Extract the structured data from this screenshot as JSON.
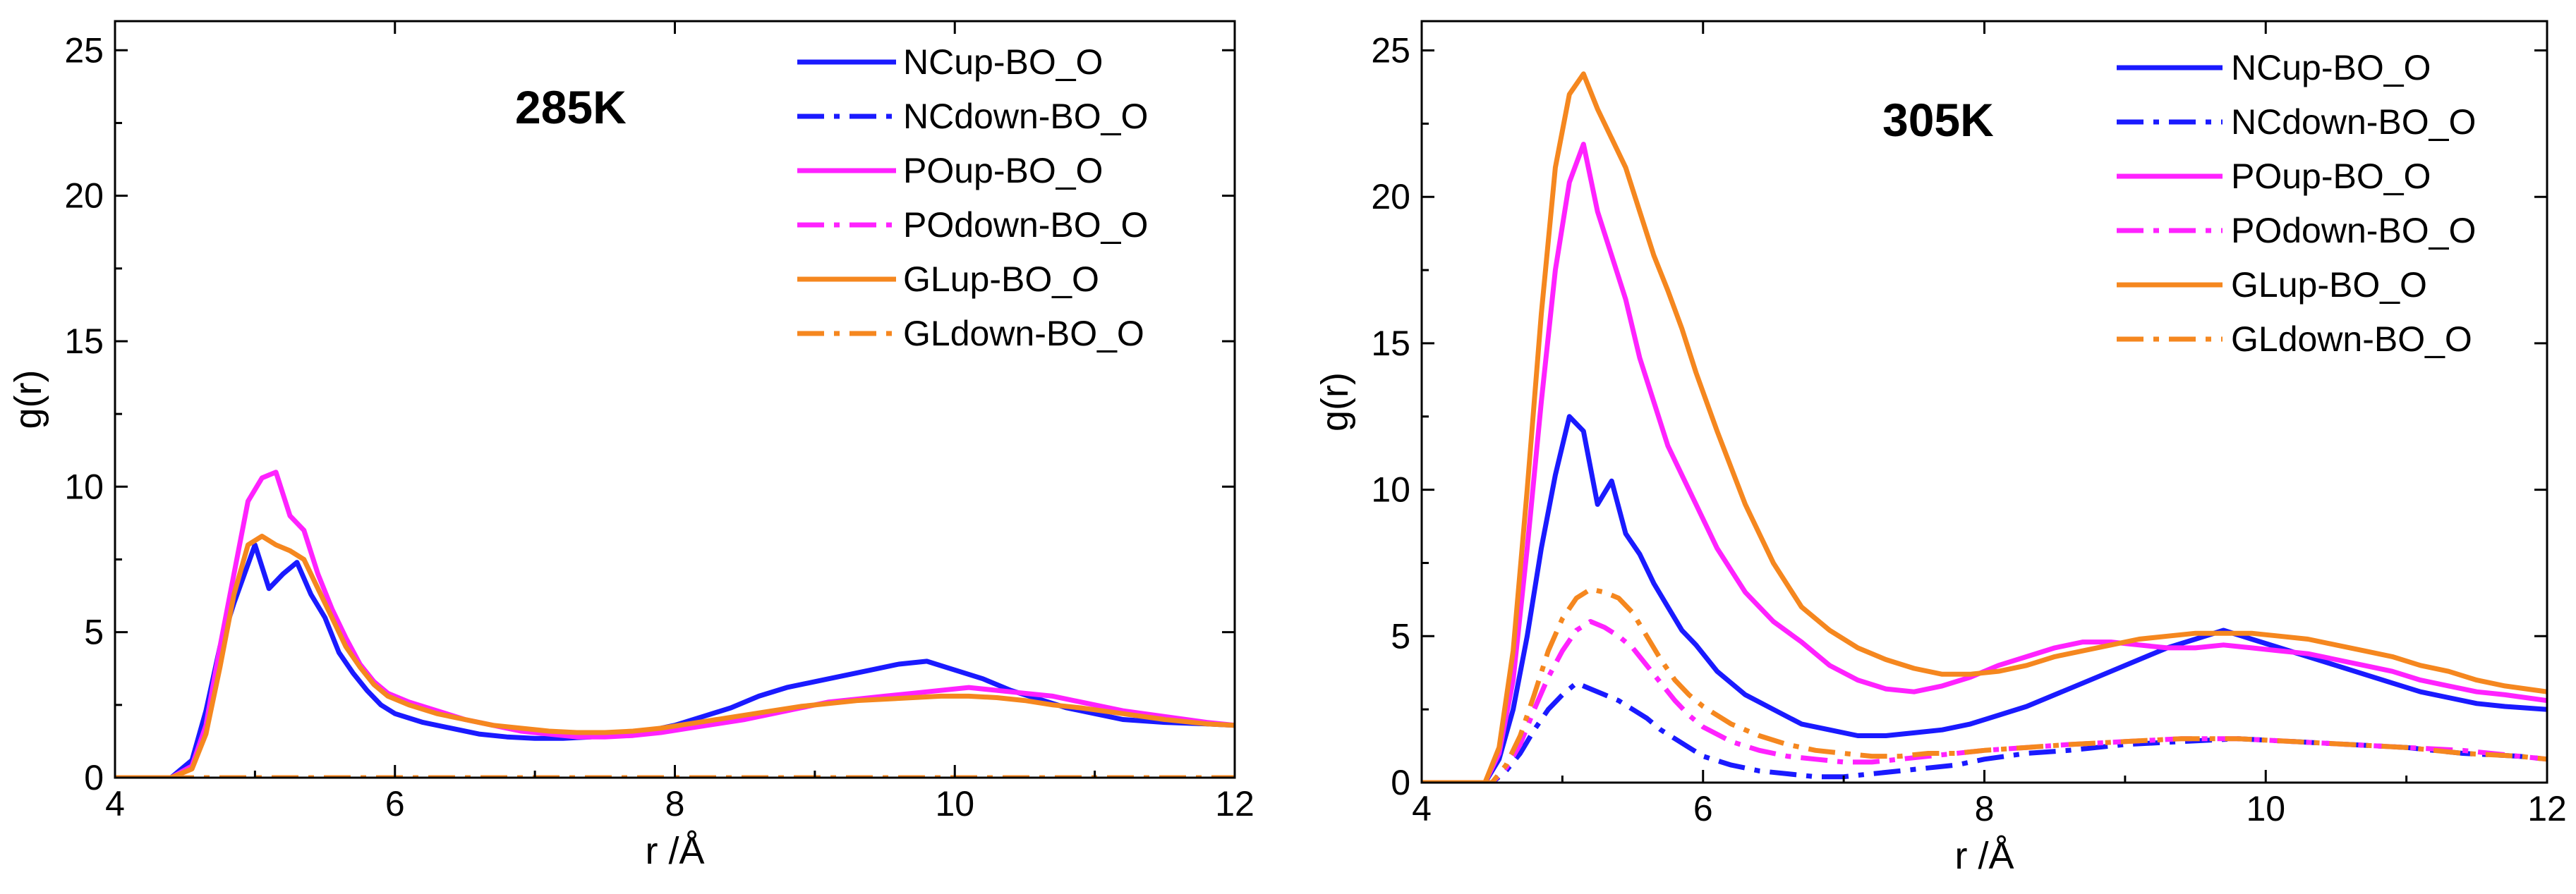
{
  "chart_data": [
    {
      "type": "line",
      "title": "285K",
      "xlabel": "r /Å",
      "ylabel": "g(r)",
      "xlim": [
        4,
        12
      ],
      "ylim": [
        0,
        26
      ],
      "xticks": [
        "4",
        "6",
        "8",
        "10",
        "12"
      ],
      "yticks": [
        "0",
        "5",
        "10",
        "15",
        "20",
        "25"
      ],
      "legend_position": "top-right",
      "series": [
        {
          "name": "NCup-BO_O",
          "color": "#1a1aff",
          "style": "solid",
          "x": [
            4.0,
            4.4,
            4.55,
            4.65,
            4.75,
            4.85,
            5.0,
            5.1,
            5.2,
            5.3,
            5.4,
            5.5,
            5.6,
            5.7,
            5.8,
            5.9,
            6.0,
            6.2,
            6.4,
            6.6,
            6.8,
            7.0,
            7.2,
            7.4,
            7.6,
            7.8,
            8.0,
            8.2,
            8.4,
            8.6,
            8.8,
            9.0,
            9.2,
            9.4,
            9.6,
            9.8,
            10.0,
            10.2,
            10.4,
            10.6,
            10.8,
            11.0,
            11.2,
            11.5,
            11.8,
            12.0
          ],
          "y": [
            0,
            0,
            0.6,
            2.3,
            4.5,
            6.0,
            8.0,
            6.5,
            7.0,
            7.4,
            6.3,
            5.5,
            4.3,
            3.6,
            3.0,
            2.5,
            2.2,
            1.9,
            1.7,
            1.5,
            1.4,
            1.35,
            1.35,
            1.4,
            1.5,
            1.6,
            1.8,
            2.1,
            2.4,
            2.8,
            3.1,
            3.3,
            3.5,
            3.7,
            3.9,
            4.0,
            3.7,
            3.4,
            3.0,
            2.7,
            2.4,
            2.2,
            2.0,
            1.9,
            1.85,
            1.8
          ]
        },
        {
          "name": "NCdown-BO_O",
          "color": "#1a1aff",
          "style": "dashdot",
          "x": [
            4.0,
            12.0
          ],
          "y": [
            0,
            0
          ]
        },
        {
          "name": "POup-BO_O",
          "color": "#ff22ff",
          "style": "solid",
          "x": [
            4.0,
            4.4,
            4.55,
            4.65,
            4.75,
            4.85,
            4.95,
            5.05,
            5.15,
            5.25,
            5.35,
            5.45,
            5.55,
            5.65,
            5.75,
            5.85,
            5.95,
            6.1,
            6.3,
            6.5,
            6.7,
            6.9,
            7.1,
            7.3,
            7.5,
            7.7,
            7.9,
            8.1,
            8.3,
            8.5,
            8.7,
            8.9,
            9.1,
            9.3,
            9.5,
            9.7,
            9.9,
            10.1,
            10.3,
            10.5,
            10.7,
            10.9,
            11.2,
            11.5,
            11.8,
            12.0
          ],
          "y": [
            0,
            0,
            0.4,
            1.8,
            4.5,
            7.0,
            9.5,
            10.3,
            10.5,
            9.0,
            8.5,
            7.0,
            5.8,
            4.8,
            3.9,
            3.3,
            2.9,
            2.6,
            2.3,
            2.0,
            1.8,
            1.6,
            1.5,
            1.4,
            1.4,
            1.45,
            1.55,
            1.7,
            1.85,
            2.0,
            2.2,
            2.4,
            2.6,
            2.7,
            2.8,
            2.9,
            3.0,
            3.1,
            3.0,
            2.9,
            2.8,
            2.6,
            2.3,
            2.1,
            1.9,
            1.8
          ]
        },
        {
          "name": "POdown-BO_O",
          "color": "#ff22ff",
          "style": "dashdot",
          "x": [
            4.0,
            12.0
          ],
          "y": [
            0,
            0
          ]
        },
        {
          "name": "GLup-BO_O",
          "color": "#f5871f",
          "style": "solid",
          "x": [
            4.0,
            4.4,
            4.55,
            4.65,
            4.75,
            4.85,
            4.95,
            5.05,
            5.15,
            5.25,
            5.35,
            5.45,
            5.55,
            5.65,
            5.75,
            5.85,
            5.95,
            6.1,
            6.3,
            6.5,
            6.7,
            6.9,
            7.1,
            7.3,
            7.5,
            7.7,
            7.9,
            8.1,
            8.3,
            8.5,
            8.7,
            8.9,
            9.1,
            9.3,
            9.5,
            9.7,
            9.9,
            10.1,
            10.3,
            10.5,
            10.7,
            10.9,
            11.2,
            11.5,
            11.8,
            12.0
          ],
          "y": [
            0,
            0,
            0.3,
            1.5,
            3.8,
            6.3,
            8.0,
            8.3,
            8.0,
            7.8,
            7.5,
            6.5,
            5.5,
            4.5,
            3.8,
            3.2,
            2.8,
            2.5,
            2.2,
            2.0,
            1.8,
            1.7,
            1.6,
            1.55,
            1.55,
            1.6,
            1.7,
            1.85,
            2.0,
            2.15,
            2.3,
            2.45,
            2.55,
            2.65,
            2.7,
            2.75,
            2.8,
            2.8,
            2.75,
            2.65,
            2.5,
            2.4,
            2.2,
            2.0,
            1.85,
            1.8
          ]
        },
        {
          "name": "GLdown-BO_O",
          "color": "#f5871f",
          "style": "dashdot",
          "x": [
            4.0,
            12.0
          ],
          "y": [
            0,
            0
          ]
        }
      ]
    },
    {
      "type": "line",
      "title": "305K",
      "xlabel": "r /Å",
      "ylabel": "g(r)",
      "xlim": [
        4,
        12
      ],
      "ylim": [
        0,
        26
      ],
      "xticks": [
        "4",
        "6",
        "8",
        "10",
        "12"
      ],
      "yticks": [
        "0",
        "5",
        "10",
        "15",
        "20",
        "25"
      ],
      "legend_position": "top-right",
      "series": [
        {
          "name": "NCup-BO_O",
          "color": "#1a1aff",
          "style": "solid",
          "x": [
            4.0,
            4.45,
            4.55,
            4.65,
            4.75,
            4.85,
            4.95,
            5.05,
            5.15,
            5.25,
            5.35,
            5.45,
            5.55,
            5.65,
            5.75,
            5.85,
            5.95,
            6.1,
            6.3,
            6.5,
            6.7,
            6.9,
            7.1,
            7.3,
            7.5,
            7.7,
            7.9,
            8.1,
            8.3,
            8.5,
            8.7,
            8.9,
            9.1,
            9.3,
            9.5,
            9.7,
            9.9,
            10.1,
            10.3,
            10.5,
            10.7,
            10.9,
            11.1,
            11.3,
            11.5,
            11.7,
            12.0
          ],
          "y": [
            0,
            0,
            0.8,
            2.5,
            5.0,
            8.0,
            10.5,
            12.5,
            12.0,
            9.5,
            10.3,
            8.5,
            7.8,
            6.8,
            6.0,
            5.2,
            4.7,
            3.8,
            3.0,
            2.5,
            2.0,
            1.8,
            1.6,
            1.6,
            1.7,
            1.8,
            2.0,
            2.3,
            2.6,
            3.0,
            3.4,
            3.8,
            4.2,
            4.6,
            4.9,
            5.2,
            4.9,
            4.6,
            4.3,
            4.0,
            3.7,
            3.4,
            3.1,
            2.9,
            2.7,
            2.6,
            2.5
          ]
        },
        {
          "name": "NCdown-BO_O",
          "color": "#1a1aff",
          "style": "dashdot",
          "x": [
            4.0,
            4.5,
            4.6,
            4.7,
            4.8,
            4.9,
            5.0,
            5.1,
            5.2,
            5.3,
            5.4,
            5.5,
            5.6,
            5.7,
            5.8,
            5.9,
            6.0,
            6.2,
            6.4,
            6.6,
            6.8,
            7.0,
            7.2,
            7.4,
            7.6,
            7.8,
            8.0,
            8.3,
            8.6,
            9.0,
            9.4,
            9.8,
            10.2,
            10.6,
            11.0,
            11.4,
            11.8,
            12.0
          ],
          "y": [
            0,
            0,
            0.4,
            1.0,
            1.8,
            2.5,
            3.0,
            3.4,
            3.2,
            3.0,
            2.8,
            2.5,
            2.2,
            1.8,
            1.5,
            1.2,
            0.9,
            0.6,
            0.4,
            0.3,
            0.2,
            0.2,
            0.3,
            0.4,
            0.5,
            0.6,
            0.8,
            1.0,
            1.1,
            1.3,
            1.4,
            1.5,
            1.4,
            1.3,
            1.2,
            1.0,
            0.9,
            0.8
          ]
        },
        {
          "name": "POup-BO_O",
          "color": "#ff22ff",
          "style": "solid",
          "x": [
            4.0,
            4.45,
            4.55,
            4.65,
            4.75,
            4.85,
            4.95,
            5.05,
            5.15,
            5.25,
            5.35,
            5.45,
            5.55,
            5.65,
            5.75,
            5.85,
            5.95,
            6.1,
            6.3,
            6.5,
            6.7,
            6.9,
            7.1,
            7.3,
            7.5,
            7.7,
            7.9,
            8.1,
            8.3,
            8.5,
            8.7,
            8.9,
            9.1,
            9.3,
            9.5,
            9.7,
            9.9,
            10.1,
            10.3,
            10.5,
            10.7,
            10.9,
            11.1,
            11.3,
            11.5,
            11.7,
            12.0
          ],
          "y": [
            0,
            0,
            1.0,
            3.5,
            8.0,
            13.0,
            17.5,
            20.5,
            21.8,
            19.5,
            18.0,
            16.5,
            14.5,
            13.0,
            11.5,
            10.5,
            9.5,
            8.0,
            6.5,
            5.5,
            4.8,
            4.0,
            3.5,
            3.2,
            3.1,
            3.3,
            3.6,
            4.0,
            4.3,
            4.6,
            4.8,
            4.8,
            4.7,
            4.6,
            4.6,
            4.7,
            4.6,
            4.5,
            4.4,
            4.2,
            4.0,
            3.8,
            3.5,
            3.3,
            3.1,
            3.0,
            2.8
          ]
        },
        {
          "name": "POdown-BO_O",
          "color": "#ff22ff",
          "style": "dashdot",
          "x": [
            4.0,
            4.5,
            4.6,
            4.7,
            4.8,
            4.9,
            5.0,
            5.1,
            5.2,
            5.3,
            5.4,
            5.5,
            5.6,
            5.7,
            5.8,
            5.9,
            6.0,
            6.2,
            6.4,
            6.6,
            6.8,
            7.0,
            7.2,
            7.4,
            7.6,
            7.8,
            8.0,
            8.3,
            8.6,
            9.0,
            9.4,
            9.8,
            10.2,
            10.6,
            11.0,
            11.4,
            11.8,
            12.0
          ],
          "y": [
            0,
            0,
            0.5,
            1.3,
            2.5,
            3.6,
            4.5,
            5.2,
            5.5,
            5.3,
            5.0,
            4.6,
            4.0,
            3.4,
            2.8,
            2.3,
            1.9,
            1.4,
            1.1,
            0.9,
            0.8,
            0.7,
            0.7,
            0.8,
            0.9,
            1.0,
            1.1,
            1.2,
            1.3,
            1.4,
            1.5,
            1.5,
            1.4,
            1.3,
            1.2,
            1.1,
            0.9,
            0.8
          ]
        },
        {
          "name": "GLup-BO_O",
          "color": "#f5871f",
          "style": "solid",
          "x": [
            4.0,
            4.45,
            4.55,
            4.65,
            4.75,
            4.85,
            4.95,
            5.05,
            5.15,
            5.25,
            5.35,
            5.45,
            5.55,
            5.65,
            5.75,
            5.85,
            5.95,
            6.1,
            6.3,
            6.5,
            6.7,
            6.9,
            7.1,
            7.3,
            7.5,
            7.7,
            7.9,
            8.1,
            8.3,
            8.5,
            8.7,
            8.9,
            9.1,
            9.3,
            9.5,
            9.7,
            9.9,
            10.1,
            10.3,
            10.5,
            10.7,
            10.9,
            11.1,
            11.3,
            11.5,
            11.7,
            12.0
          ],
          "y": [
            0,
            0,
            1.2,
            4.5,
            10.0,
            16.0,
            21.0,
            23.5,
            24.2,
            23.0,
            22.0,
            21.0,
            19.5,
            18.0,
            16.8,
            15.5,
            14.0,
            12.0,
            9.5,
            7.5,
            6.0,
            5.2,
            4.6,
            4.2,
            3.9,
            3.7,
            3.7,
            3.8,
            4.0,
            4.3,
            4.5,
            4.7,
            4.9,
            5.0,
            5.1,
            5.1,
            5.1,
            5.0,
            4.9,
            4.7,
            4.5,
            4.3,
            4.0,
            3.8,
            3.5,
            3.3,
            3.1
          ]
        },
        {
          "name": "GLdown-BO_O",
          "color": "#f5871f",
          "style": "dashdot",
          "x": [
            4.0,
            4.5,
            4.6,
            4.7,
            4.8,
            4.9,
            5.0,
            5.1,
            5.2,
            5.3,
            5.4,
            5.5,
            5.6,
            5.7,
            5.8,
            5.9,
            6.0,
            6.2,
            6.4,
            6.6,
            6.8,
            7.0,
            7.2,
            7.4,
            7.6,
            7.8,
            8.0,
            8.3,
            8.6,
            9.0,
            9.4,
            9.8,
            10.2,
            10.6,
            11.0,
            11.4,
            11.8,
            12.0
          ],
          "y": [
            0,
            0,
            0.6,
            1.6,
            3.0,
            4.5,
            5.6,
            6.3,
            6.6,
            6.5,
            6.3,
            5.8,
            5.0,
            4.2,
            3.5,
            3.0,
            2.6,
            2.0,
            1.6,
            1.3,
            1.1,
            1.0,
            0.9,
            0.9,
            1.0,
            1.0,
            1.1,
            1.2,
            1.3,
            1.4,
            1.5,
            1.5,
            1.4,
            1.3,
            1.2,
            1.0,
            0.9,
            0.8
          ]
        }
      ]
    }
  ]
}
